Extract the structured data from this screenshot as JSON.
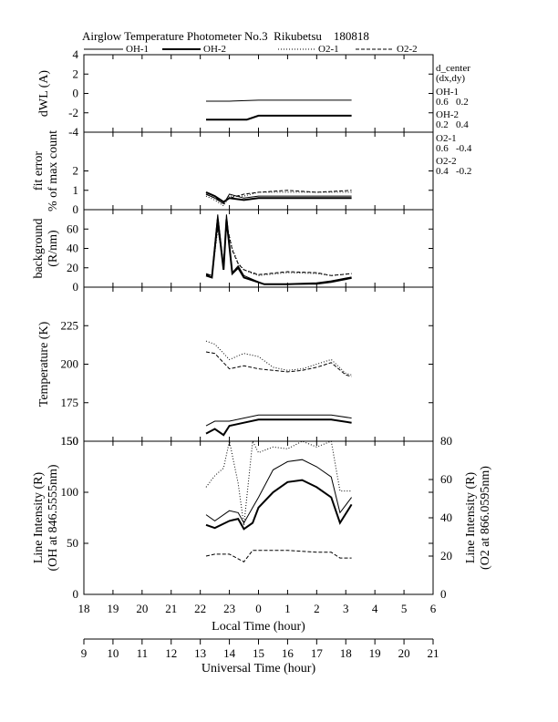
{
  "title": "Airglow Temperature Photometer No.3  Rikubetsu    180818",
  "legend": [
    {
      "label": "OH-1",
      "style": "solid-thin"
    },
    {
      "label": "OH-2",
      "style": "solid-thick"
    },
    {
      "label": "O2-1",
      "style": "dotted"
    },
    {
      "label": "O2-2",
      "style": "dashed"
    }
  ],
  "side_notes": {
    "d_center": "d_center",
    "dxdy": "(dx,dy)",
    "oh1_name": "OH-1",
    "oh1_val": "0.6   0.2",
    "oh2_name": "OH-2",
    "oh2_val": "0.2   0.4",
    "o21_name": "O2-1",
    "o21_val": "0.6   -0.4",
    "o22_name": "O2-2",
    "o22_val": "0.4   -0.2"
  },
  "x_axes": {
    "local_time": {
      "label": "Local Time (hour)",
      "ticks": [
        "18",
        "19",
        "20",
        "21",
        "22",
        "23",
        "0",
        "1",
        "2",
        "3",
        "4",
        "5",
        "6"
      ]
    },
    "universal_time": {
      "label": "Universal Time (hour)",
      "ticks": [
        "9",
        "10",
        "11",
        "12",
        "13",
        "14",
        "15",
        "16",
        "17",
        "18",
        "19",
        "20",
        "21"
      ]
    }
  },
  "chart_data": [
    {
      "type": "line",
      "ylabel": "dWL (A)",
      "ylim": [
        -4,
        4
      ],
      "yticks": [
        "4",
        "2",
        "0",
        "-2",
        "-4"
      ],
      "x_unit": "UT hour",
      "series": [
        {
          "name": "OH-1",
          "x": [
            13.2,
            14.0,
            15.0,
            16.0,
            17.0,
            18.2
          ],
          "values": [
            -0.8,
            -0.8,
            -0.7,
            -0.7,
            -0.7,
            -0.7
          ]
        },
        {
          "name": "OH-2",
          "x": [
            13.2,
            14.0,
            14.6,
            15.0,
            16.0,
            17.0,
            18.2
          ],
          "values": [
            -2.7,
            -2.7,
            -2.7,
            -2.3,
            -2.3,
            -2.3,
            -2.3
          ]
        }
      ]
    },
    {
      "type": "line",
      "ylabel": "fit error % of max count",
      "ylabel_lines": [
        "fit error",
        "% of max count"
      ],
      "ylim": [
        0,
        4
      ],
      "yticks": [
        "2",
        "1",
        "0"
      ],
      "x_unit": "UT hour",
      "series": [
        {
          "name": "OH-1",
          "x": [
            13.2,
            13.5,
            13.8,
            14.0,
            14.5,
            15.0,
            16.0,
            17.0,
            18.2
          ],
          "values": [
            0.8,
            0.6,
            0.3,
            0.8,
            0.6,
            0.7,
            0.7,
            0.7,
            0.7
          ]
        },
        {
          "name": "OH-2",
          "x": [
            13.2,
            13.5,
            13.8,
            14.0,
            14.5,
            15.0,
            16.0,
            17.0,
            18.2
          ],
          "values": [
            0.9,
            0.7,
            0.4,
            0.6,
            0.5,
            0.6,
            0.6,
            0.6,
            0.6
          ]
        },
        {
          "name": "O2-1",
          "x": [
            13.2,
            13.5,
            13.8,
            14.0,
            14.5,
            15.0,
            16.0,
            17.0,
            18.2
          ],
          "values": [
            0.7,
            0.5,
            0.2,
            0.7,
            0.7,
            0.9,
            0.9,
            0.9,
            0.9
          ]
        },
        {
          "name": "O2-2",
          "x": [
            13.2,
            13.5,
            13.8,
            14.0,
            14.5,
            15.0,
            16.0,
            17.0,
            18.2
          ],
          "values": [
            0.8,
            0.6,
            0.4,
            0.6,
            0.8,
            0.9,
            1.0,
            0.9,
            1.0
          ]
        }
      ]
    },
    {
      "type": "line",
      "ylabel": "background (R/nm)",
      "ylabel_lines": [
        "background",
        "(R/nm)"
      ],
      "ylim": [
        0,
        80
      ],
      "yticks": [
        "60",
        "40",
        "20",
        "0"
      ],
      "x_unit": "UT hour",
      "series": [
        {
          "name": "OH-1",
          "x": [
            13.2,
            13.4,
            13.6,
            13.8,
            13.9,
            14.1,
            14.3,
            14.5,
            14.8,
            15.2,
            16.0,
            17.0,
            17.5,
            18.2
          ],
          "values": [
            14,
            12,
            75,
            20,
            75,
            15,
            22,
            12,
            8,
            3,
            3,
            3,
            5,
            9
          ]
        },
        {
          "name": "OH-2",
          "x": [
            13.2,
            13.4,
            13.6,
            13.8,
            13.9,
            14.1,
            14.3,
            14.5,
            14.8,
            15.2,
            16.0,
            17.0,
            17.5,
            18.2
          ],
          "values": [
            12,
            10,
            70,
            18,
            70,
            14,
            20,
            10,
            7,
            3,
            3,
            4,
            6,
            10
          ]
        },
        {
          "name": "O2-1",
          "x": [
            13.2,
            13.4,
            13.6,
            13.8,
            13.9,
            14.1,
            14.3,
            14.5,
            14.8,
            15.0,
            16.0,
            17.0,
            17.5,
            18.2
          ],
          "values": [
            12,
            12,
            60,
            22,
            65,
            40,
            25,
            18,
            14,
            12,
            15,
            14,
            12,
            14
          ]
        },
        {
          "name": "O2-2",
          "x": [
            13.2,
            13.4,
            13.6,
            13.8,
            13.9,
            14.1,
            14.3,
            14.5,
            14.8,
            15.0,
            16.0,
            17.0,
            17.5,
            18.2
          ],
          "values": [
            13,
            12,
            62,
            25,
            66,
            38,
            24,
            18,
            15,
            13,
            16,
            15,
            12,
            14
          ]
        }
      ]
    },
    {
      "type": "line",
      "ylabel": "Temperature (K)",
      "ylim": [
        150,
        250
      ],
      "yticks": [
        "225",
        "200",
        "175",
        "150"
      ],
      "x_unit": "UT hour",
      "series": [
        {
          "name": "OH-1",
          "x": [
            13.2,
            13.5,
            14.0,
            14.5,
            15.0,
            16.0,
            17.0,
            17.5,
            18.2
          ],
          "values": [
            160,
            163,
            163,
            165,
            167,
            167,
            167,
            167,
            165
          ]
        },
        {
          "name": "OH-2",
          "x": [
            13.2,
            13.5,
            13.8,
            14.0,
            14.5,
            15.0,
            16.0,
            17.0,
            17.5,
            18.2
          ],
          "values": [
            155,
            158,
            154,
            160,
            162,
            164,
            164,
            164,
            164,
            162
          ]
        },
        {
          "name": "O2-1",
          "x": [
            13.2,
            13.5,
            14.0,
            14.5,
            15.0,
            15.5,
            16.0,
            16.5,
            17.0,
            17.5,
            18.0,
            18.2
          ],
          "values": [
            215,
            213,
            203,
            207,
            205,
            198,
            196,
            197,
            200,
            203,
            194,
            193
          ]
        },
        {
          "name": "O2-2",
          "x": [
            13.2,
            13.5,
            14.0,
            14.5,
            15.0,
            15.5,
            16.0,
            16.5,
            17.0,
            17.5,
            18.0,
            18.2
          ],
          "values": [
            208,
            207,
            197,
            199,
            197,
            196,
            195,
            196,
            198,
            201,
            193,
            192
          ]
        }
      ]
    },
    {
      "type": "line",
      "ylabel": "Line Intensity (R) (OH at 846.5555nm)",
      "ylabel_lines": [
        "Line Intensity (R)",
        "(OH at 846.5555nm)"
      ],
      "ylim": [
        0,
        150
      ],
      "yticks": [
        "150",
        "100",
        "50",
        "0"
      ],
      "y2label": "Line Intensity (R) (O2 at 866.0595nm)",
      "y2label_lines": [
        "Line Intensity (R)",
        "(O2 at 866.0595nm)"
      ],
      "y2lim": [
        0,
        80
      ],
      "y2ticks": [
        "80",
        "60",
        "40",
        "20",
        "0"
      ],
      "x_unit": "UT hour",
      "series": [
        {
          "name": "OH-1",
          "axis": "left",
          "x": [
            13.2,
            13.5,
            14.0,
            14.3,
            14.5,
            14.8,
            15.0,
            15.5,
            16.0,
            16.5,
            17.0,
            17.5,
            17.8,
            18.2
          ],
          "values": [
            78,
            72,
            82,
            80,
            70,
            85,
            95,
            122,
            130,
            132,
            125,
            115,
            80,
            95
          ]
        },
        {
          "name": "OH-2",
          "axis": "left",
          "x": [
            13.2,
            13.5,
            14.0,
            14.3,
            14.5,
            14.8,
            15.0,
            15.5,
            16.0,
            16.5,
            17.0,
            17.5,
            17.8,
            18.2
          ],
          "values": [
            68,
            65,
            72,
            74,
            64,
            70,
            85,
            100,
            110,
            112,
            105,
            95,
            70,
            88
          ]
        },
        {
          "name": "O2-1",
          "axis": "right",
          "x": [
            13.2,
            13.5,
            13.8,
            14.0,
            14.3,
            14.5,
            14.8,
            15.0,
            15.5,
            16.0,
            16.5,
            17.0,
            17.5,
            17.8,
            18.2
          ],
          "values": [
            56,
            62,
            66,
            80,
            58,
            36,
            80,
            74,
            77,
            76,
            80,
            77,
            80,
            54,
            54
          ]
        },
        {
          "name": "O2-2",
          "axis": "right",
          "x": [
            13.2,
            13.5,
            14.0,
            14.5,
            14.8,
            15.0,
            16.0,
            17.0,
            17.5,
            17.8,
            18.2
          ],
          "values": [
            20,
            21,
            21,
            17,
            23,
            23,
            23,
            22,
            22,
            19,
            19
          ]
        }
      ]
    }
  ]
}
